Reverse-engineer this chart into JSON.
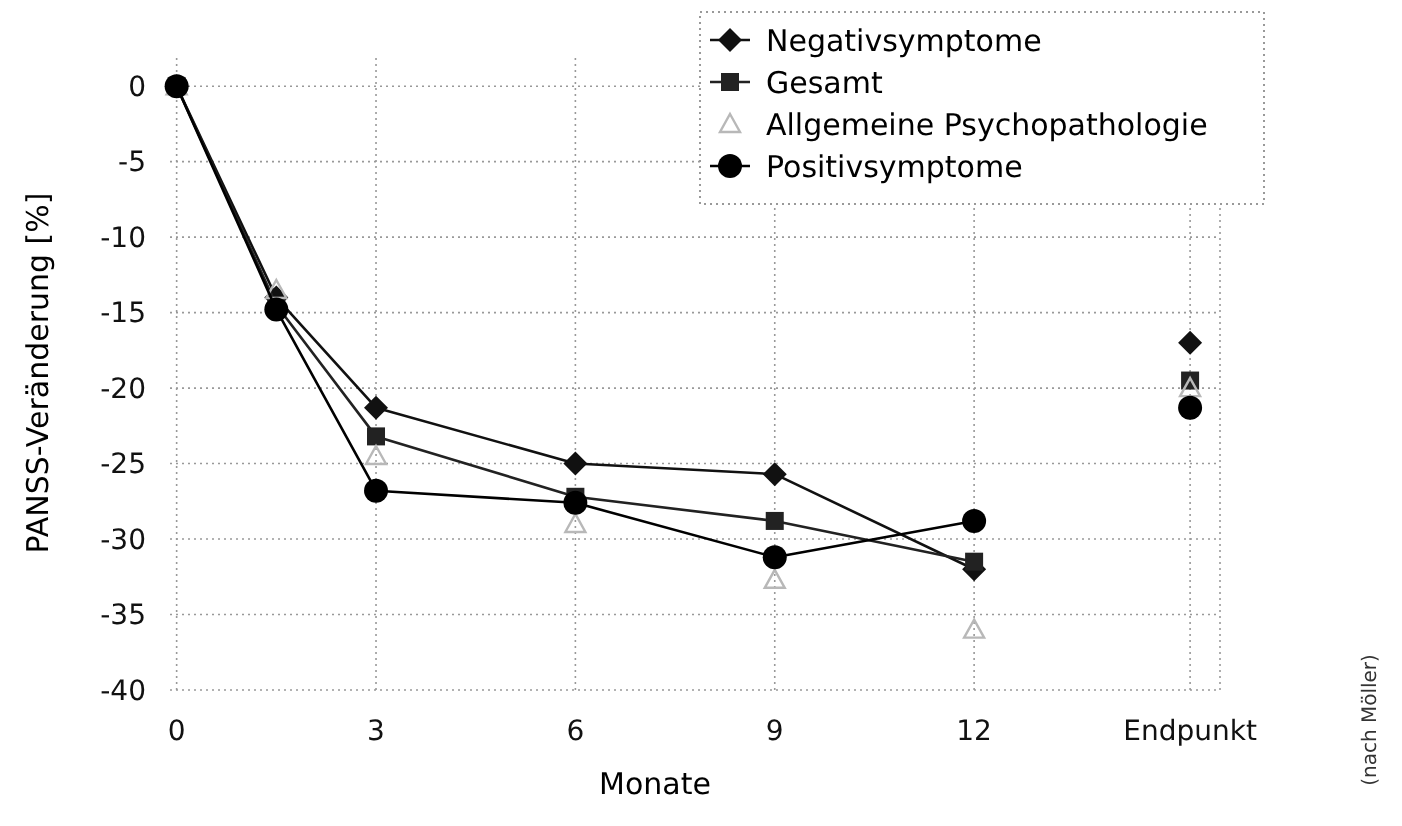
{
  "chart_data": {
    "type": "line",
    "xlabel": "Monate",
    "ylabel": "PANSS-Veränderung [%]",
    "x": [
      0,
      1.5,
      3,
      6,
      9,
      12,
      13.5,
      15.25
    ],
    "xlim": [
      -0.1,
      15.7
    ],
    "ylim": [
      -40,
      2
    ],
    "xticks": [
      {
        "value": 0,
        "label": "0"
      },
      3,
      6,
      9,
      12,
      {
        "value": 15.25,
        "label": "Endpunkt"
      }
    ],
    "yticks": [
      0,
      -5,
      -10,
      -15,
      -20,
      -25,
      -30,
      -35,
      -40
    ],
    "grid": true,
    "legend": "top right",
    "line_style": "solid",
    "series": [
      {
        "name": "Negativsymptome",
        "color": "#111111",
        "marker": "diamond",
        "values": [
          0,
          -14,
          -21.3,
          -25,
          -25.7,
          -32,
          null,
          -17
        ]
      },
      {
        "name": "Gesamt",
        "color": "#222222",
        "marker": "square",
        "values": [
          0,
          -14.5,
          -23.2,
          -27.2,
          -28.8,
          -31.5,
          null,
          -19.5
        ]
      },
      {
        "name": "Allgemeine Psychopathologie",
        "type": "scatter",
        "color": "#b8b8b8",
        "marker": "triangle",
        "values": [
          0,
          -13.5,
          -24.5,
          -29,
          -32.7,
          -36,
          null,
          -20
        ]
      },
      {
        "name": "Positivsymptome",
        "color": "#000000",
        "marker": "circle",
        "values": [
          0,
          -14.8,
          -26.8,
          -27.6,
          -31.2,
          -28.8,
          null,
          -21.3
        ]
      }
    ],
    "annotations": [
      "(nach Möller)"
    ]
  }
}
